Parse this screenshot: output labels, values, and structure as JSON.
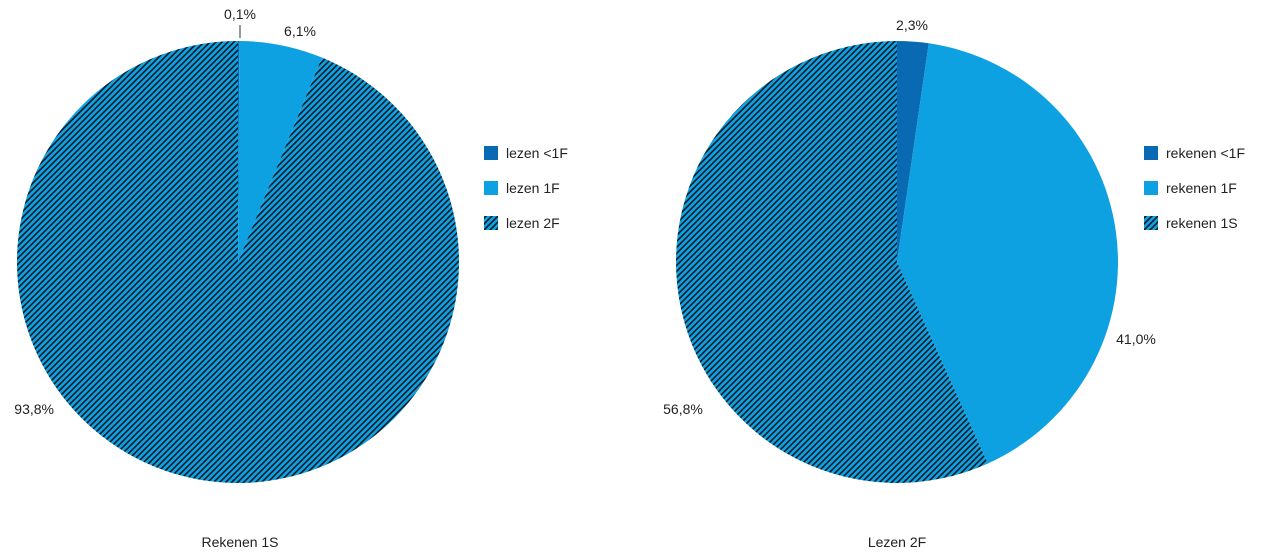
{
  "colors": {
    "dark_blue": "#0a69b3",
    "light_blue": "#0ea1e2",
    "hatch_line": "#0c1a26",
    "text": "#222222"
  },
  "chart_data": [
    {
      "type": "pie",
      "caption": "Rekenen 1S",
      "slices": [
        {
          "legend": "lezen <1F",
          "value": 0.1,
          "label": "0,1%",
          "fill": "dark"
        },
        {
          "legend": "lezen 1F",
          "value": 6.1,
          "label": "6,1%",
          "fill": "light"
        },
        {
          "legend": "lezen 2F",
          "value": 93.8,
          "label": "93,8%",
          "fill": "hatch"
        }
      ],
      "legend_position": "right"
    },
    {
      "type": "pie",
      "caption": "Lezen 2F",
      "slices": [
        {
          "legend": "rekenen <1F",
          "value": 2.3,
          "label": "2,3%",
          "fill": "dark"
        },
        {
          "legend": "rekenen 1F",
          "value": 41.0,
          "label": "41,0%",
          "fill": "light"
        },
        {
          "legend": "rekenen 1S",
          "value": 56.8,
          "label": "56,8%",
          "fill": "hatch"
        }
      ],
      "legend_position": "right"
    }
  ]
}
